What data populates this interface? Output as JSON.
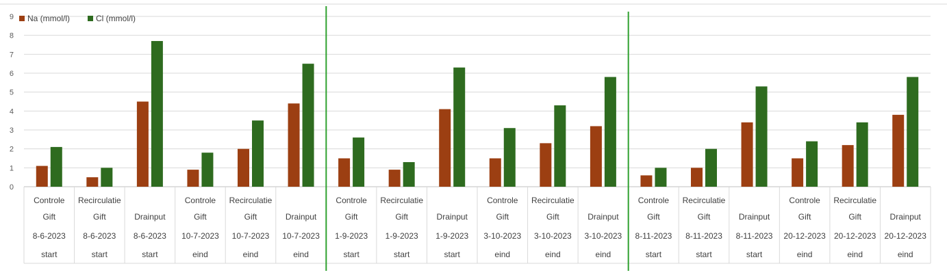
{
  "chart_data": {
    "type": "bar",
    "title": "",
    "xlabel": "",
    "ylabel": "",
    "ylim": [
      0,
      9
    ],
    "yticks": [
      0,
      1,
      2,
      3,
      4,
      5,
      6,
      7,
      8,
      9
    ],
    "grid": true,
    "legend_position": "top-left",
    "categories": [
      [
        "Controle",
        "Gift",
        "8-6-2023",
        "start"
      ],
      [
        "Recirculatie",
        "Gift",
        "8-6-2023",
        "start"
      ],
      [
        "Drainput",
        "8-6-2023",
        "start"
      ],
      [
        "Controle",
        "Gift",
        "10-7-2023",
        "eind"
      ],
      [
        "Recirculatie",
        "Gift",
        "10-7-2023",
        "eind"
      ],
      [
        "Drainput",
        "10-7-2023",
        "eind"
      ],
      [
        "Controle",
        "Gift",
        "1-9-2023",
        "start"
      ],
      [
        "Recirculatie",
        "Gift",
        "1-9-2023",
        "start"
      ],
      [
        "Drainput",
        "1-9-2023",
        "start"
      ],
      [
        "Controle",
        "Gift",
        "3-10-2023",
        "eind"
      ],
      [
        "Recirculatie",
        "Gift",
        "3-10-2023",
        "eind"
      ],
      [
        "Drainput",
        "3-10-2023",
        "eind"
      ],
      [
        "Controle",
        "Gift",
        "8-11-2023",
        "start"
      ],
      [
        "Recirculatie",
        "Gift",
        "8-11-2023",
        "start"
      ],
      [
        "Drainput",
        "8-11-2023",
        "start"
      ],
      [
        "Controle",
        "Gift",
        "20-12-2023",
        "eind"
      ],
      [
        "Recirculatie",
        "Gift",
        "20-12-2023",
        "eind"
      ],
      [
        "Drainput",
        "20-12-2023",
        "eind"
      ]
    ],
    "series": [
      {
        "name": "Na (mmol/l)",
        "color": "#9C3F12",
        "values": [
          1.1,
          0.5,
          4.5,
          0.9,
          2.0,
          4.4,
          1.5,
          0.9,
          4.1,
          1.5,
          2.3,
          3.2,
          0.6,
          1.0,
          3.4,
          1.5,
          2.2,
          3.8
        ]
      },
      {
        "name": "Cl (mmol/l)",
        "color": "#2E6B1F",
        "values": [
          2.1,
          1.0,
          7.7,
          1.8,
          3.5,
          6.5,
          2.6,
          1.3,
          6.3,
          3.1,
          4.3,
          5.8,
          1.0,
          2.0,
          5.3,
          2.4,
          3.4,
          5.8
        ]
      }
    ],
    "separators_after_category_index": [
      5,
      11
    ],
    "separator_color": "#2EA02E"
  }
}
